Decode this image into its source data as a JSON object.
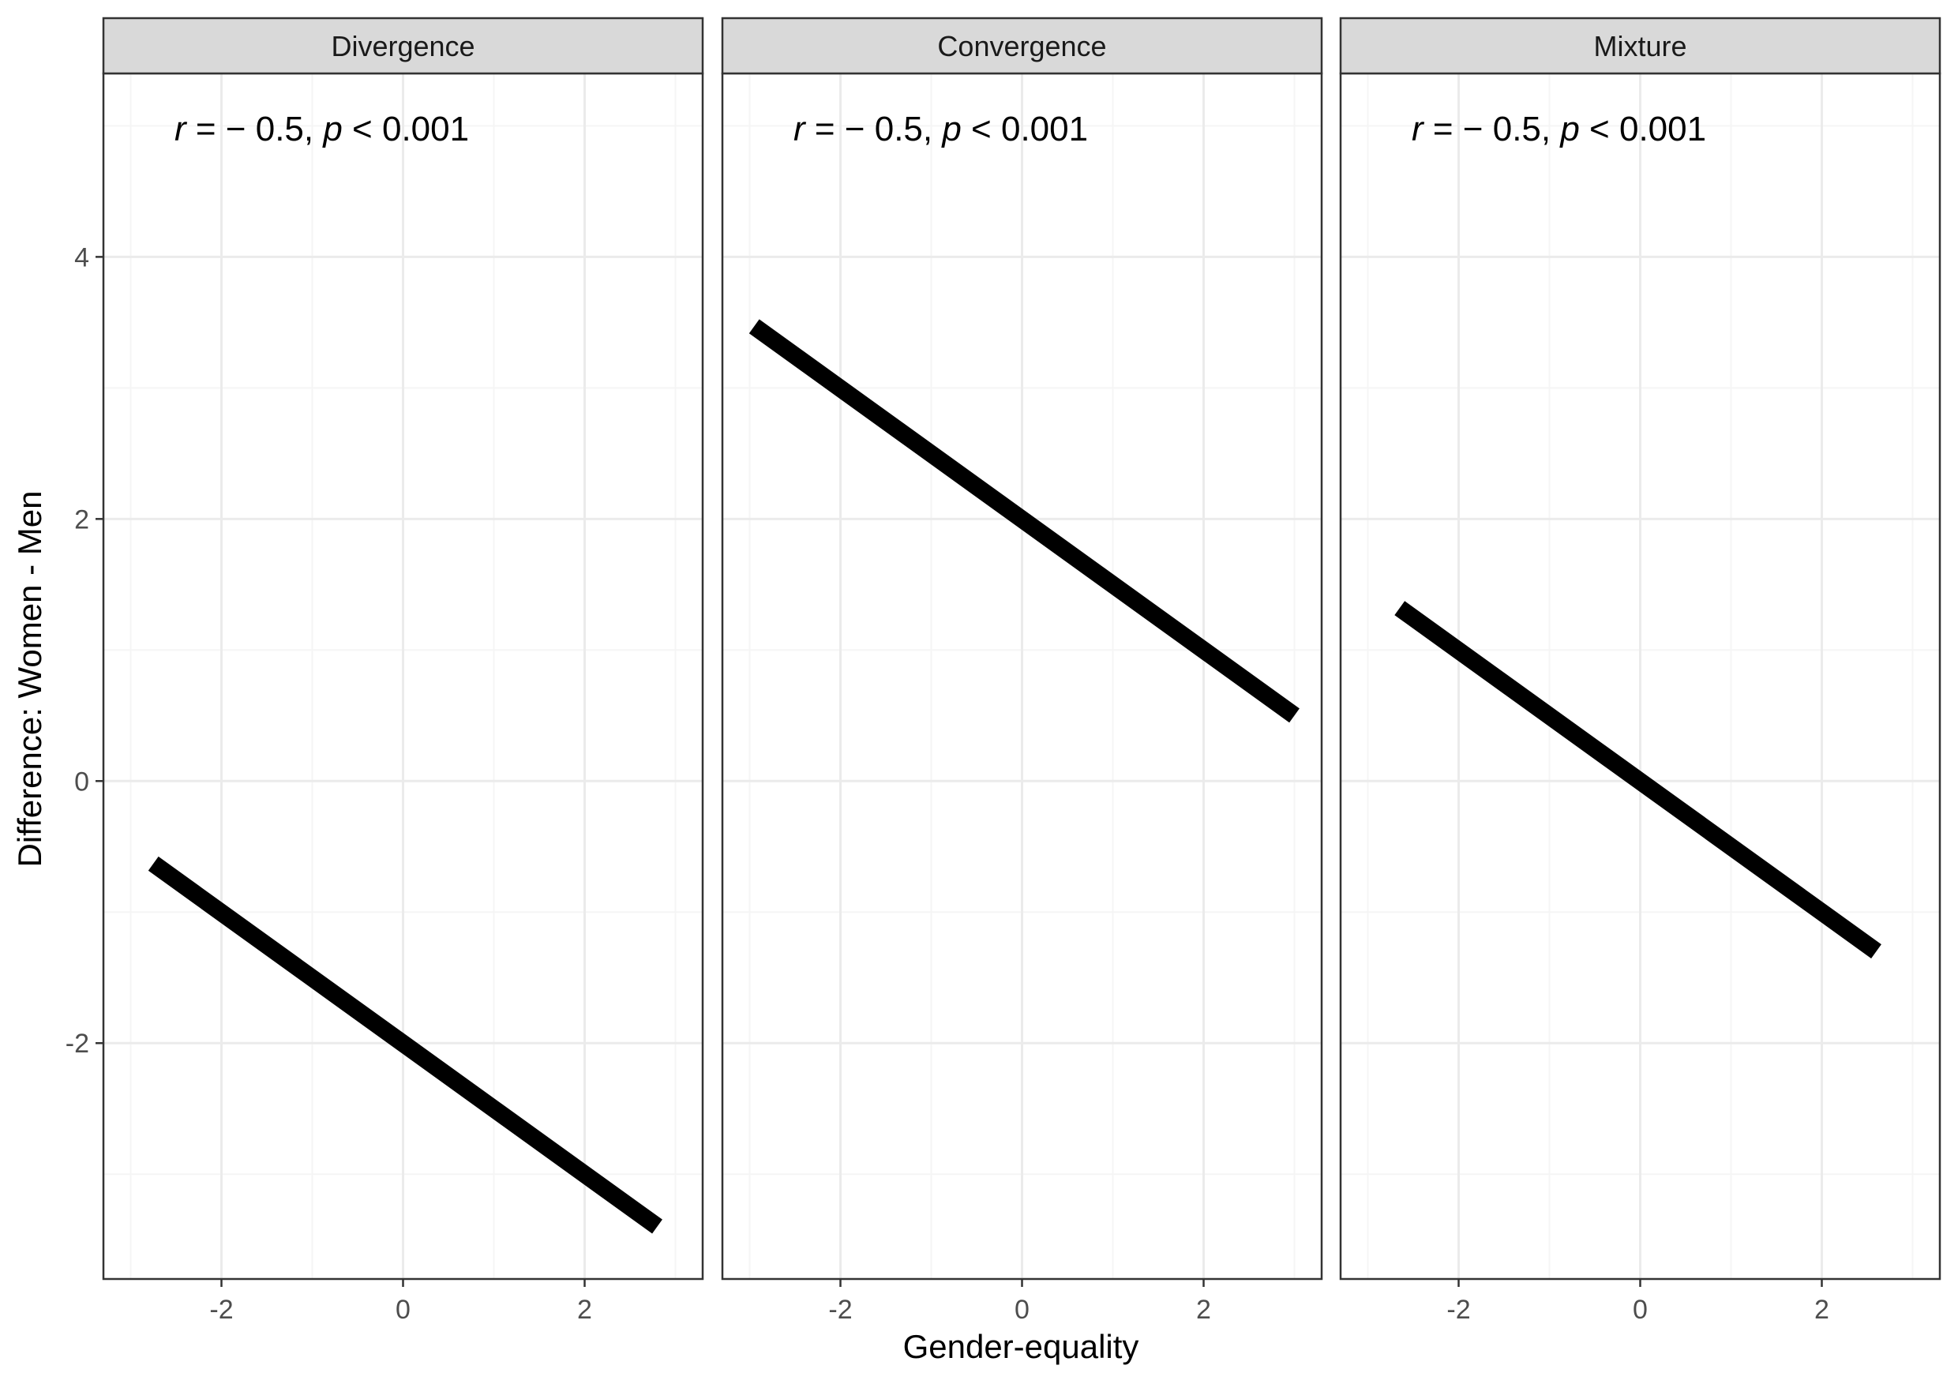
{
  "chart_data": {
    "type": "line",
    "layout": "faceted",
    "xlabel": "Gender-equality",
    "ylabel": "Difference: Women - Men",
    "xlim": [
      -3.3,
      3.3
    ],
    "ylim": [
      -3.8,
      5.4
    ],
    "x_ticks": [
      -2,
      0,
      2
    ],
    "y_ticks": [
      -2,
      0,
      2,
      4
    ],
    "grid": true,
    "line_color": "#000000",
    "panels": [
      {
        "title": "Divergence",
        "annotation": {
          "r_symbol": "r",
          "r_part": " = − 0.5, ",
          "p_symbol": "p",
          "p_part": " < 0.001"
        },
        "x": [
          -2.75,
          2.8
        ],
        "y": [
          -0.63,
          -3.4
        ]
      },
      {
        "title": "Convergence",
        "annotation": {
          "r_symbol": "r",
          "r_part": " = − 0.5, ",
          "p_symbol": "p",
          "p_part": " < 0.001"
        },
        "x": [
          -2.95,
          3.0
        ],
        "y": [
          3.47,
          0.5
        ]
      },
      {
        "title": "Mixture",
        "annotation": {
          "r_symbol": "r",
          "r_part": " = − 0.5, ",
          "p_symbol": "p",
          "p_part": " < 0.001"
        },
        "x": [
          -2.65,
          2.6
        ],
        "y": [
          1.32,
          -1.3
        ]
      }
    ],
    "colors": {
      "strip_fill": "#d9d9d9",
      "panel_border": "#333333",
      "grid_major": "#ebebeb",
      "grid_minor": "#f5f5f5",
      "tick_label": "#4d4d4d"
    }
  }
}
